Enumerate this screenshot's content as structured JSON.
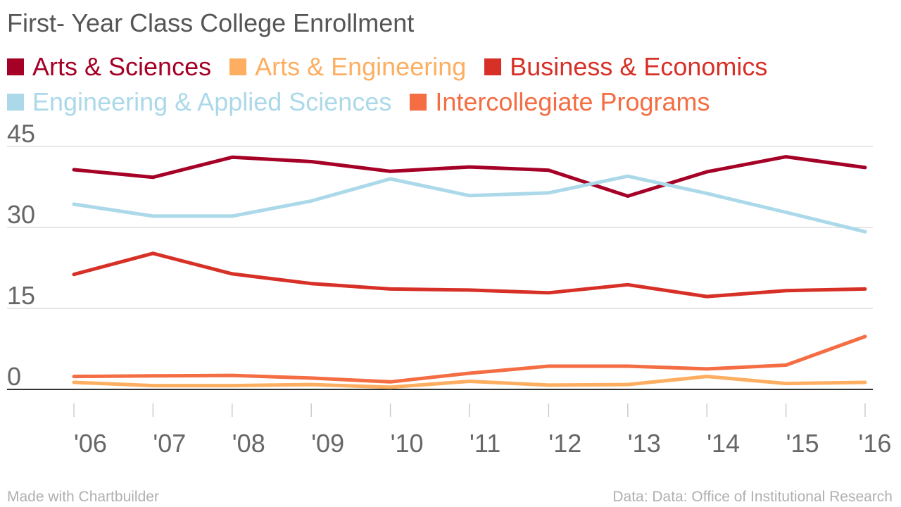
{
  "chart_data": {
    "type": "line",
    "title": "First- Year Class College Enrollment",
    "xlabel": "",
    "ylabel": "",
    "categories": [
      "'06",
      "'07",
      "'08",
      "'09",
      "'10",
      "'11",
      "'12",
      "'13",
      "'14",
      "'15",
      "'16"
    ],
    "ylim": [
      0,
      45
    ],
    "yticks": [
      0,
      15,
      30,
      45
    ],
    "grid": true,
    "legend_position": "top-left",
    "series": [
      {
        "name": "Arts & Sciences",
        "color": "#a50026",
        "values": [
          40.7,
          39.3,
          43.0,
          42.2,
          40.4,
          41.2,
          40.6,
          35.8,
          40.3,
          43.1,
          41.1
        ]
      },
      {
        "name": "Arts & Engineering",
        "color": "#fdae61",
        "values": [
          1.3,
          0.7,
          0.7,
          0.9,
          0.4,
          1.5,
          0.8,
          0.9,
          2.4,
          1.1,
          1.3
        ]
      },
      {
        "name": "Business & Economics",
        "color": "#d73027",
        "values": [
          21.3,
          25.2,
          21.4,
          19.6,
          18.6,
          18.4,
          17.9,
          19.4,
          17.2,
          18.3,
          18.6
        ]
      },
      {
        "name": "Engineering & Applied Sciences",
        "color": "#abd9e9",
        "values": [
          34.3,
          32.1,
          32.1,
          34.9,
          39.0,
          35.9,
          36.4,
          39.5,
          36.3,
          32.8,
          29.2
        ]
      },
      {
        "name": "Intercollegiate Programs",
        "color": "#f46d43",
        "values": [
          2.4,
          2.5,
          2.6,
          2.1,
          1.4,
          3.0,
          4.3,
          4.3,
          3.8,
          4.5,
          9.8
        ]
      }
    ]
  },
  "footer": {
    "credit": "Made with Chartbuilder",
    "source": "Data: Data: Office of Institutional Research"
  }
}
